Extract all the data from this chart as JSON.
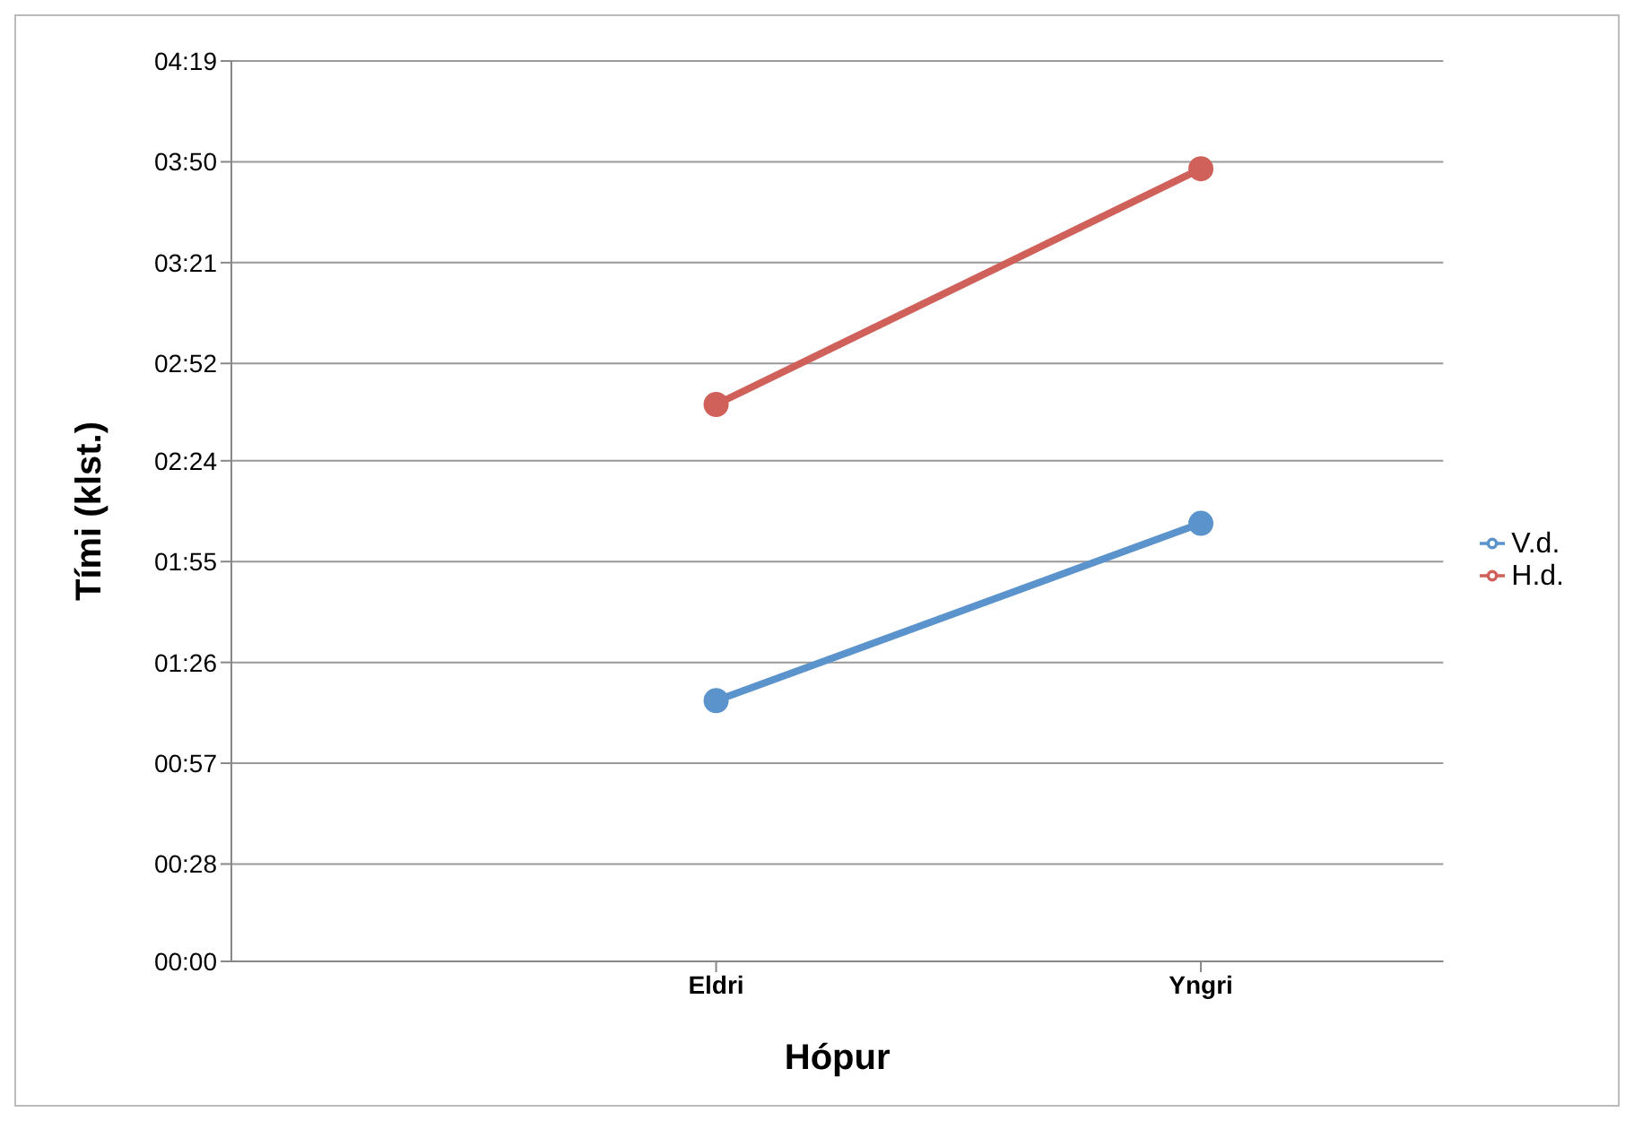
{
  "chart_data": {
    "type": "line",
    "xlabel": "Hópur",
    "ylabel": "Tími (klst.)",
    "categories": [
      "Eldri",
      "Yngri"
    ],
    "series": [
      {
        "name": "V.d.",
        "color": "#5b93cc",
        "values": [
          1.25,
          2.1
        ]
      },
      {
        "name": "H.d.",
        "color": "#d0605a",
        "values": [
          2.67,
          3.8
        ]
      }
    ],
    "ylim": [
      0,
      4.3167
    ],
    "yticks": [
      {
        "value": 0,
        "label": "00:00"
      },
      {
        "value": 0.4667,
        "label": "00:28"
      },
      {
        "value": 0.95,
        "label": "00:57"
      },
      {
        "value": 1.4333,
        "label": "01:26"
      },
      {
        "value": 1.9167,
        "label": "01:55"
      },
      {
        "value": 2.4,
        "label": "02:24"
      },
      {
        "value": 2.8667,
        "label": "02:52"
      },
      {
        "value": 3.35,
        "label": "03:21"
      },
      {
        "value": 3.8333,
        "label": "03:50"
      },
      {
        "value": 4.3167,
        "label": "04:19"
      }
    ],
    "grid": "y",
    "legend": "right",
    "marker": "circle",
    "line_style": "solid"
  }
}
